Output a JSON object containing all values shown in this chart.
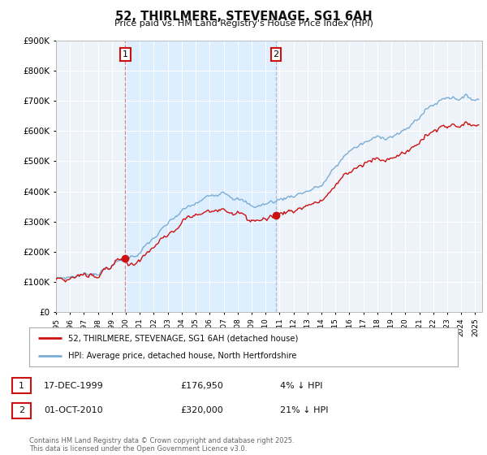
{
  "title": "52, THIRLMERE, STEVENAGE, SG1 6AH",
  "subtitle": "Price paid vs. HM Land Registry's House Price Index (HPI)",
  "ylim": [
    0,
    900000
  ],
  "yticks": [
    0,
    100000,
    200000,
    300000,
    400000,
    500000,
    600000,
    700000,
    800000,
    900000
  ],
  "xlim_start": 1995.0,
  "xlim_end": 2025.5,
  "hpi_color": "#7aadd4",
  "price_color": "#cc1111",
  "vline1_color": "#cc8888",
  "vline2_color": "#aabbdd",
  "shade_color": "#ddeeff",
  "sale1_year": 1999.96,
  "sale1_price": 176950,
  "sale2_year": 2010.75,
  "sale2_price": 320000,
  "legend_label_red": "52, THIRLMERE, STEVENAGE, SG1 6AH (detached house)",
  "legend_label_blue": "HPI: Average price, detached house, North Hertfordshire",
  "transaction1_date": "17-DEC-1999",
  "transaction1_price": "£176,950",
  "transaction1_hpi": "4% ↓ HPI",
  "transaction2_date": "01-OCT-2010",
  "transaction2_price": "£320,000",
  "transaction2_hpi": "21% ↓ HPI",
  "footer": "Contains HM Land Registry data © Crown copyright and database right 2025.\nThis data is licensed under the Open Government Licence v3.0.",
  "bg_color": "#ffffff",
  "plot_bg_color": "#eef3fa",
  "grid_color": "#ffffff"
}
